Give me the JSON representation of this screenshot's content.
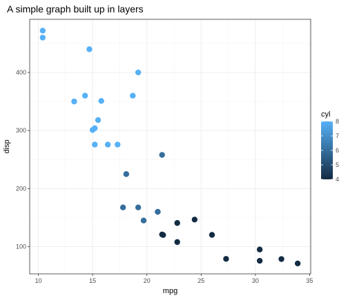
{
  "chart_data": {
    "type": "scatter",
    "title": "A simple graph built up in layers",
    "xlabel": "mpg",
    "ylabel": "disp",
    "xlim": [
      9.2,
      35.1
    ],
    "ylim": [
      53.2,
      491.5
    ],
    "x_ticks": [
      10,
      15,
      20,
      25,
      30,
      35
    ],
    "y_ticks": [
      100,
      200,
      300,
      400
    ],
    "grid": true,
    "legend": {
      "title": "cyl",
      "placement": "right",
      "ticks": [
        4,
        5,
        6,
        7,
        8
      ],
      "range": [
        4,
        8
      ],
      "color_low": "#132B43",
      "color_high": "#56B1F7"
    },
    "points": [
      {
        "x": 21.0,
        "y": 160,
        "c": 6
      },
      {
        "x": 21.0,
        "y": 160,
        "c": 6
      },
      {
        "x": 22.8,
        "y": 108,
        "c": 4
      },
      {
        "x": 21.4,
        "y": 258,
        "c": 6
      },
      {
        "x": 18.7,
        "y": 360,
        "c": 8
      },
      {
        "x": 18.1,
        "y": 225,
        "c": 6
      },
      {
        "x": 14.3,
        "y": 360,
        "c": 8
      },
      {
        "x": 24.4,
        "y": 146.7,
        "c": 4
      },
      {
        "x": 22.8,
        "y": 140.8,
        "c": 4
      },
      {
        "x": 19.2,
        "y": 167.6,
        "c": 6
      },
      {
        "x": 17.8,
        "y": 167.6,
        "c": 6
      },
      {
        "x": 16.4,
        "y": 275.8,
        "c": 8
      },
      {
        "x": 17.3,
        "y": 275.8,
        "c": 8
      },
      {
        "x": 15.2,
        "y": 275.8,
        "c": 8
      },
      {
        "x": 10.4,
        "y": 472,
        "c": 8
      },
      {
        "x": 10.4,
        "y": 460,
        "c": 8
      },
      {
        "x": 14.7,
        "y": 440,
        "c": 8
      },
      {
        "x": 32.4,
        "y": 78.7,
        "c": 4
      },
      {
        "x": 30.4,
        "y": 75.7,
        "c": 4
      },
      {
        "x": 33.9,
        "y": 71.1,
        "c": 4
      },
      {
        "x": 21.5,
        "y": 120.1,
        "c": 4
      },
      {
        "x": 15.5,
        "y": 318,
        "c": 8
      },
      {
        "x": 15.2,
        "y": 304,
        "c": 8
      },
      {
        "x": 13.3,
        "y": 350,
        "c": 8
      },
      {
        "x": 19.2,
        "y": 400,
        "c": 8
      },
      {
        "x": 27.3,
        "y": 79,
        "c": 4
      },
      {
        "x": 26.0,
        "y": 120.3,
        "c": 4
      },
      {
        "x": 30.4,
        "y": 95.1,
        "c": 4
      },
      {
        "x": 15.8,
        "y": 351,
        "c": 8
      },
      {
        "x": 19.7,
        "y": 145,
        "c": 6
      },
      {
        "x": 15.0,
        "y": 301,
        "c": 8
      },
      {
        "x": 21.4,
        "y": 121,
        "c": 4
      }
    ]
  }
}
